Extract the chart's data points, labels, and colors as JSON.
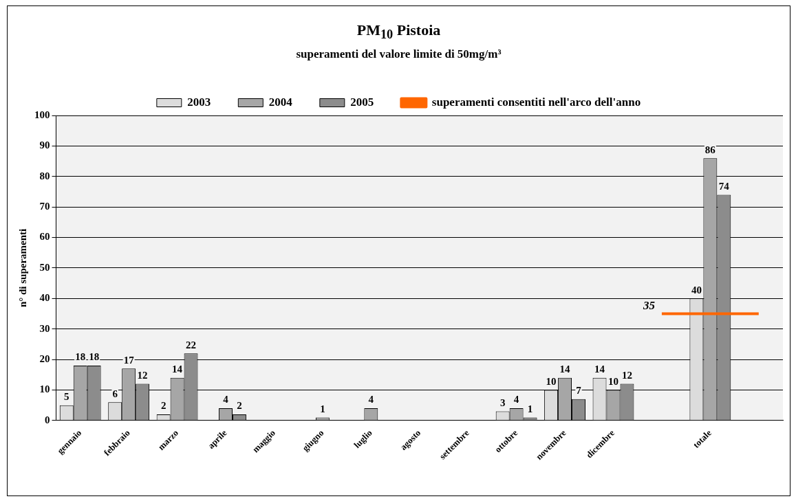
{
  "chart_data": {
    "type": "bar",
    "title": "PM$_{10}$ Pistoia",
    "subtitle": "superamenti del valore limite di 50mg/m³",
    "ylabel": "n° di superamenti",
    "categories": [
      "gennaio",
      "febbraio",
      "marzo",
      "aprile",
      "maggio",
      "giugno",
      "luglio",
      "agosto",
      "settembre",
      "ottobre",
      "novembre",
      "dicembre",
      null,
      "totale",
      null
    ],
    "ylim": [
      0,
      100
    ],
    "yticks": [
      0,
      10,
      20,
      30,
      40,
      50,
      60,
      70,
      80,
      90,
      100
    ],
    "grid": "y",
    "legend": "top",
    "series": [
      {
        "name": "2003",
        "color": "#dcdcdc",
        "values": [
          5,
          6,
          2,
          0,
          0,
          0,
          0,
          0,
          0,
          3,
          10,
          14,
          null,
          40,
          null
        ],
        "value_labels": [
          "5",
          "6",
          "2",
          null,
          null,
          null,
          null,
          null,
          null,
          "3",
          "10",
          "14",
          null,
          "40",
          null
        ]
      },
      {
        "name": "2004",
        "color": "#a6a6a6",
        "values": [
          18,
          17,
          14,
          4,
          0,
          1,
          4,
          0,
          0,
          4,
          14,
          10,
          null,
          86,
          null
        ],
        "value_labels": [
          "18",
          "17",
          "14",
          "4",
          null,
          "1",
          "4",
          null,
          null,
          "4",
          "14",
          "10",
          null,
          "86",
          null
        ]
      },
      {
        "name": "2005",
        "color": "#8c8c8c",
        "values": [
          18,
          12,
          22,
          2,
          0,
          0,
          0,
          0,
          0,
          1,
          7,
          12,
          null,
          74,
          null
        ],
        "value_labels": [
          "18",
          "12",
          "22",
          "2",
          null,
          null,
          null,
          null,
          null,
          "1",
          "7",
          "12",
          null,
          "74",
          null
        ]
      },
      {
        "name": "superamenti consentiti nell'arco dell'anno",
        "type": "line",
        "color": "#ff6600",
        "values": [
          null,
          null,
          null,
          null,
          null,
          null,
          null,
          null,
          null,
          null,
          null,
          null,
          35,
          35,
          35
        ],
        "value_labels": [
          null,
          null,
          null,
          null,
          null,
          null,
          null,
          null,
          null,
          null,
          null,
          null,
          "35",
          null,
          null
        ]
      }
    ]
  }
}
